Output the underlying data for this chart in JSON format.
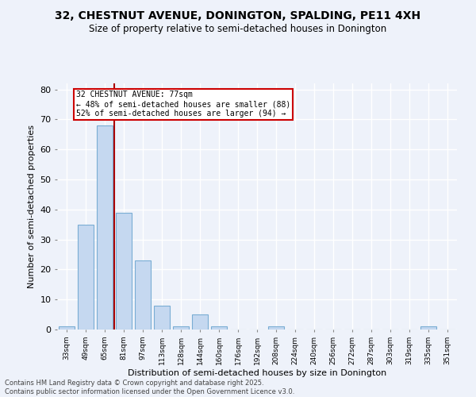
{
  "title_line1": "32, CHESTNUT AVENUE, DONINGTON, SPALDING, PE11 4XH",
  "title_line2": "Size of property relative to semi-detached houses in Donington",
  "categories": [
    "33sqm",
    "49sqm",
    "65sqm",
    "81sqm",
    "97sqm",
    "113sqm",
    "128sqm",
    "144sqm",
    "160sqm",
    "176sqm",
    "192sqm",
    "208sqm",
    "224sqm",
    "240sqm",
    "256sqm",
    "272sqm",
    "287sqm",
    "303sqm",
    "319sqm",
    "335sqm",
    "351sqm"
  ],
  "values": [
    1,
    35,
    68,
    39,
    23,
    8,
    1,
    5,
    1,
    0,
    0,
    1,
    0,
    0,
    0,
    0,
    0,
    0,
    0,
    1,
    0
  ],
  "bar_color": "#c5d8f0",
  "bar_edge_color": "#7aadd4",
  "vline_x": 2.5,
  "vline_color": "#aa0000",
  "annotation_title": "32 CHESTNUT AVENUE: 77sqm",
  "annotation_line1": "← 48% of semi-detached houses are smaller (88)",
  "annotation_line2": "52% of semi-detached houses are larger (94) →",
  "annotation_box_color": "#cc0000",
  "xlabel": "Distribution of semi-detached houses by size in Donington",
  "ylabel": "Number of semi-detached properties",
  "ylim": [
    0,
    82
  ],
  "yticks": [
    0,
    10,
    20,
    30,
    40,
    50,
    60,
    70,
    80
  ],
  "footer_line1": "Contains HM Land Registry data © Crown copyright and database right 2025.",
  "footer_line2": "Contains public sector information licensed under the Open Government Licence v3.0.",
  "bg_color": "#eef2fa",
  "grid_color": "#d8dff0"
}
